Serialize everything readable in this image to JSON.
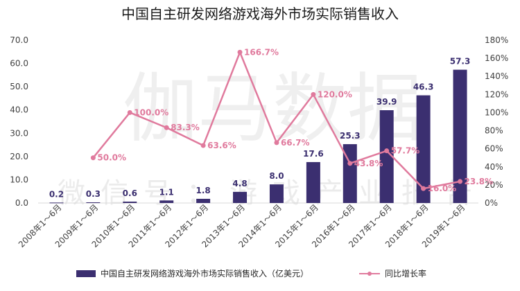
{
  "chart_data": {
    "type": "bar+line",
    "title": "中国自主研发网络游戏海外市场实际销售收入",
    "categories": [
      "2008年1～6月",
      "2009年1～6月",
      "2010年1～6月",
      "2011年1～6月",
      "2012年1～6月",
      "2013年1～6月",
      "2014年1～6月",
      "2015年1～6月",
      "2016年1～6月",
      "2017年1～6月",
      "2018年1～6月",
      "2019年1～6月"
    ],
    "series": [
      {
        "name": "中国自主研发网络游戏海外市场实际销售收入（亿美元）",
        "type": "bar",
        "axis": "left",
        "values": [
          0.2,
          0.3,
          0.6,
          1.1,
          1.8,
          4.8,
          8.0,
          17.6,
          25.3,
          39.9,
          46.3,
          57.3
        ],
        "labels": [
          "0.2",
          "0.3",
          "0.6",
          "1.1",
          "1.8",
          "4.8",
          "8.0",
          "17.6",
          "25.3",
          "39.9",
          "46.3",
          "57.3"
        ],
        "color": "#3b2f70"
      },
      {
        "name": "同比增长率",
        "type": "line",
        "axis": "right",
        "values": [
          null,
          50.0,
          100.0,
          83.3,
          63.6,
          166.7,
          66.7,
          120.0,
          43.8,
          57.7,
          16.0,
          23.8
        ],
        "labels": [
          null,
          "50.0%",
          "100.0%",
          "83.3%",
          "63.6%",
          "166.7%",
          "66.7%",
          "120.0%",
          "43.8%",
          "57.7%",
          "16.0%",
          "23.8%"
        ],
        "color": "#e07a9d"
      }
    ],
    "y_left": {
      "min": 0,
      "max": 70,
      "ticks": [
        "0.0",
        "10.0",
        "20.0",
        "30.0",
        "40.0",
        "50.0",
        "60.0",
        "70.0"
      ]
    },
    "y_right": {
      "min": 0,
      "max": 180,
      "ticks": [
        "0%",
        "20%",
        "40%",
        "60%",
        "80%",
        "100%",
        "120%",
        "140%",
        "160%",
        "180%"
      ]
    },
    "legend": {
      "position": "bottom"
    },
    "watermark": {
      "main": "伽马数据",
      "sub": "微信号：游戏产业报告"
    }
  }
}
